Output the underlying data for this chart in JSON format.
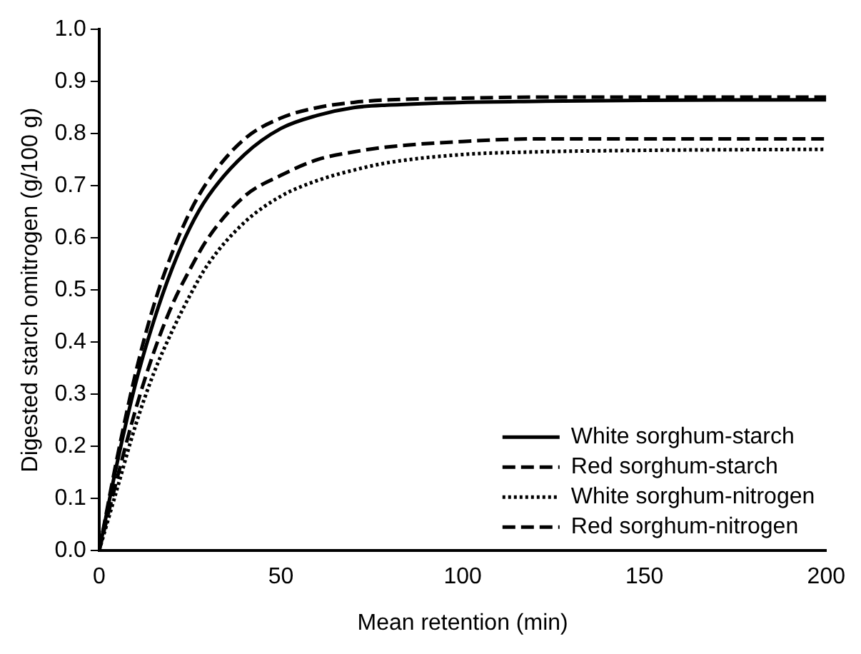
{
  "chart_data": {
    "type": "line",
    "xlabel": "Mean retention (min)",
    "ylabel": "Digested starch omitrogen (g/100 g)",
    "x": [
      0,
      5,
      10,
      15,
      20,
      25,
      30,
      40,
      50,
      60,
      70,
      80,
      100,
      120,
      150,
      200
    ],
    "xlim": [
      0,
      200
    ],
    "xticks": [
      0,
      50,
      100,
      150,
      200
    ],
    "ylim": [
      0,
      1.0
    ],
    "yticks": [
      {
        "value": 0,
        "label": "0.0"
      },
      0.1,
      0.2,
      0.3,
      0.4,
      0.5,
      0.6,
      0.7,
      0.8,
      0.9,
      {
        "value": 1,
        "label": "1.0"
      }
    ],
    "grid": false,
    "legend": "bottom right",
    "marker": "none",
    "series": [
      {
        "name": "White sorghum-starch",
        "color": "#000000",
        "line_style": "solid",
        "values": [
          0,
          0.17,
          0.32,
          0.44,
          0.54,
          0.62,
          0.68,
          0.76,
          0.81,
          0.835,
          0.85,
          0.855,
          0.86,
          0.862,
          0.864,
          0.865
        ]
      },
      {
        "name": "Red sorghum-starch",
        "color": "#000000",
        "line_style": "dashed",
        "values": [
          0,
          0.18,
          0.34,
          0.47,
          0.57,
          0.65,
          0.71,
          0.79,
          0.83,
          0.85,
          0.86,
          0.865,
          0.868,
          0.87,
          0.87,
          0.87
        ]
      },
      {
        "name": "White sorghum-nitrogen",
        "color": "#000000",
        "line_style": "dotted",
        "values": [
          0,
          0.12,
          0.24,
          0.34,
          0.42,
          0.49,
          0.55,
          0.63,
          0.68,
          0.71,
          0.73,
          0.745,
          0.76,
          0.765,
          0.768,
          0.77
        ]
      },
      {
        "name": "Red sorghum-nitrogen",
        "color": "#000000",
        "line_style": "dashed",
        "values": [
          0,
          0.14,
          0.27,
          0.38,
          0.47,
          0.54,
          0.6,
          0.68,
          0.72,
          0.75,
          0.765,
          0.775,
          0.785,
          0.79,
          0.79,
          0.79
        ]
      }
    ]
  }
}
